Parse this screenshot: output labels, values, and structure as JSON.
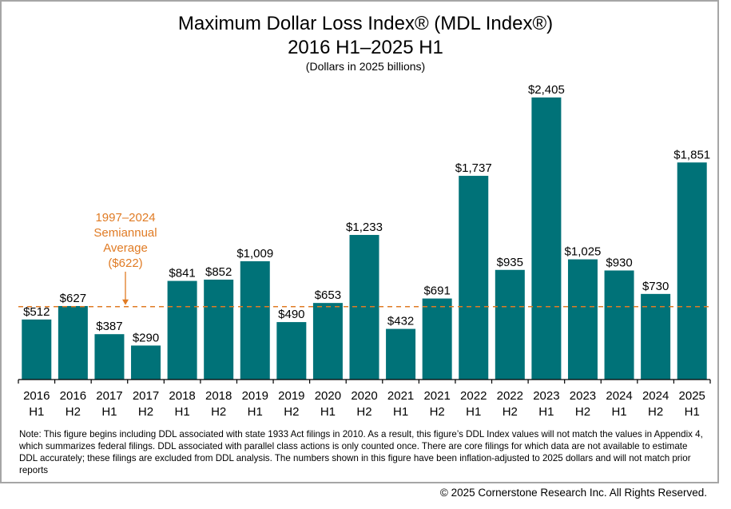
{
  "chart_data": {
    "type": "bar",
    "title": "Maximum Dollar Loss Index® (MDL Index®)",
    "subtitle": "2016 H1–2025 H1",
    "units_note": "(Dollars in 2025 billions)",
    "xlabel": "",
    "ylabel": "",
    "ylim": [
      0,
      2405
    ],
    "grid": false,
    "bar_color": "#007278",
    "categories": [
      [
        "2016",
        "H1"
      ],
      [
        "2016",
        "H2"
      ],
      [
        "2017",
        "H1"
      ],
      [
        "2017",
        "H2"
      ],
      [
        "2018",
        "H1"
      ],
      [
        "2018",
        "H2"
      ],
      [
        "2019",
        "H1"
      ],
      [
        "2019",
        "H2"
      ],
      [
        "2020",
        "H1"
      ],
      [
        "2020",
        "H2"
      ],
      [
        "2021",
        "H1"
      ],
      [
        "2021",
        "H2"
      ],
      [
        "2022",
        "H1"
      ],
      [
        "2022",
        "H2"
      ],
      [
        "2023",
        "H1"
      ],
      [
        "2023",
        "H2"
      ],
      [
        "2024",
        "H1"
      ],
      [
        "2024",
        "H2"
      ],
      [
        "2025",
        "H1"
      ]
    ],
    "values": [
      512,
      627,
      387,
      290,
      841,
      852,
      1009,
      490,
      653,
      1233,
      432,
      691,
      1737,
      935,
      2405,
      1025,
      930,
      730,
      1851
    ],
    "value_labels": [
      "$512",
      "$627",
      "$387",
      "$290",
      "$841",
      "$852",
      "$1,009",
      "$490",
      "$653",
      "$1,233",
      "$432",
      "$691",
      "$1,737",
      "$935",
      "$2,405",
      "$1,025",
      "$930",
      "$730",
      "$1,851"
    ],
    "reference_line": {
      "value": 622,
      "color": "#e07b24",
      "style": "dashed",
      "label_lines": [
        "1997–2024",
        "Semiannual",
        "Average",
        "($622)"
      ]
    }
  },
  "note": "Note: This figure begins including DDL associated with state 1933 Act filings in 2010. As a result, this figure’s DDL Index values will not match the values in Appendix 4, which summarizes federal filings. DDL associated with parallel class actions is only counted once. There are core filings for which data are not available to estimate DDL accurately; these filings are excluded from DDL analysis. The numbers shown in this figure have been inflation-adjusted to 2025 dollars and will not match prior reports",
  "copyright": "© 2025 Cornerstone Research Inc. All Rights Reserved."
}
